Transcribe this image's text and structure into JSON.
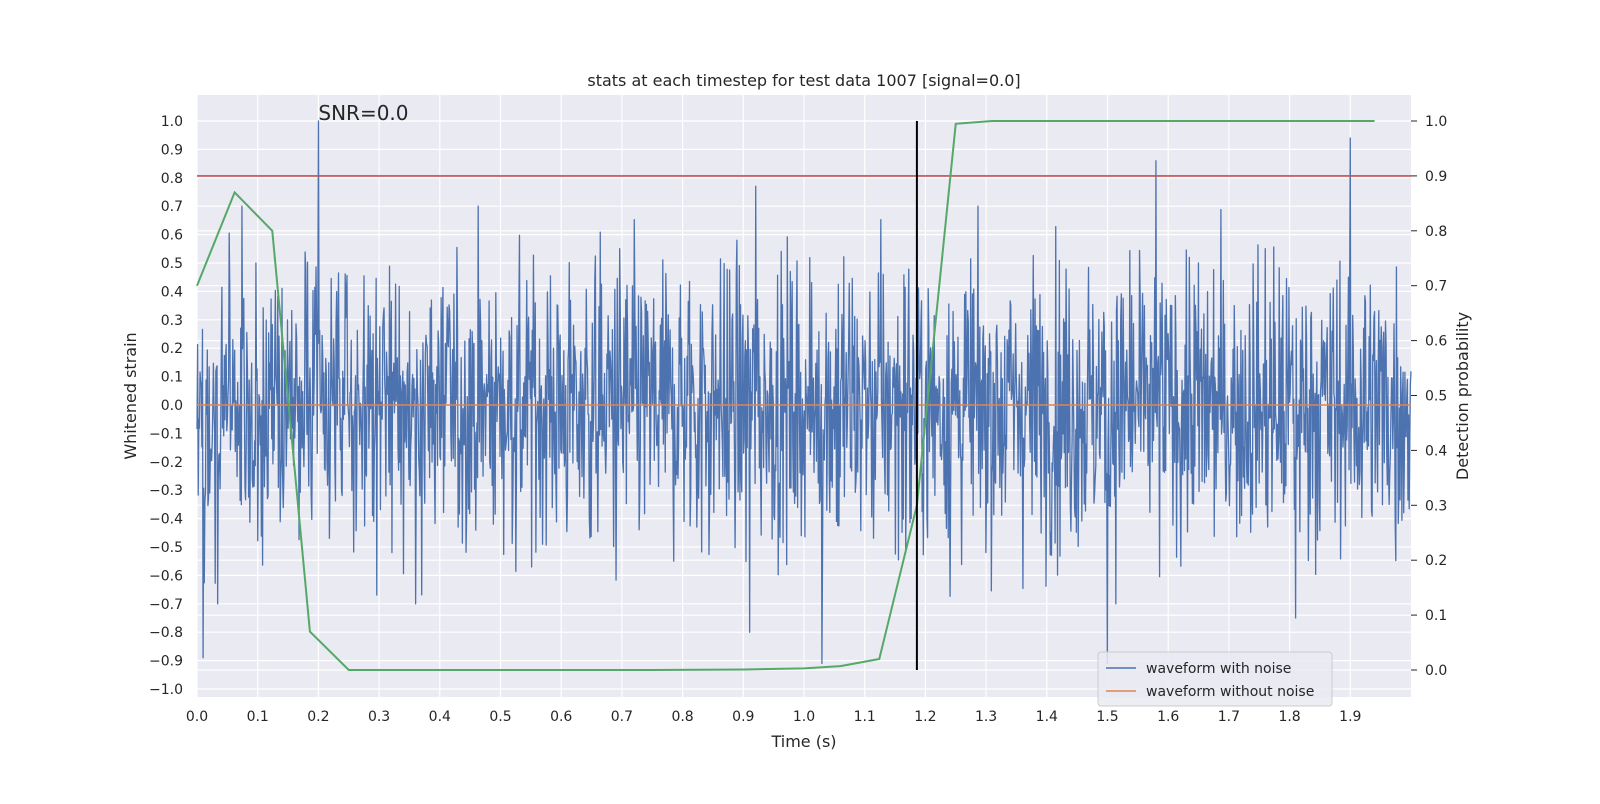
{
  "chart_data": {
    "type": "line",
    "title": "stats at each timestep for test data 1007 [signal=0.0]",
    "annotation": "SNR=0.0",
    "xlabel": "Time (s)",
    "ylabel": "Whitened strain",
    "ylabel_right": "Detection probability",
    "xlim": [
      0.0,
      2.0
    ],
    "ylim": [
      -1.05,
      1.05
    ],
    "ylim_right": [
      -0.05,
      1.05
    ],
    "x_ticks": [
      "0.0",
      "0.1",
      "0.2",
      "0.3",
      "0.4",
      "0.5",
      "0.6",
      "0.7",
      "0.8",
      "0.9",
      "1.0",
      "1.1",
      "1.2",
      "1.3",
      "1.4",
      "1.5",
      "1.6",
      "1.7",
      "1.8",
      "1.9"
    ],
    "y_ticks": [
      "1.0",
      "0.9",
      "0.8",
      "0.7",
      "0.6",
      "0.5",
      "0.4",
      "0.3",
      "0.2",
      "0.1",
      "0.0",
      "−0.1",
      "−0.2",
      "−0.3",
      "−0.4",
      "−0.5",
      "−0.6",
      "−0.7",
      "−0.8",
      "−0.9",
      "−1.0"
    ],
    "y_ticks_right": [
      "1.0",
      "0.9",
      "0.8",
      "0.7",
      "0.6",
      "0.5",
      "0.4",
      "0.3",
      "0.2",
      "0.1",
      "0.0"
    ],
    "grid": true,
    "legend_position": "lower-right",
    "series": [
      {
        "name": "waveform with noise",
        "color": "#4c72b0",
        "axis": "left",
        "noise_amplitude_std": 0.25,
        "spikes": [
          {
            "x": 0.2,
            "y": 1.0
          },
          {
            "x": 0.92,
            "y": 0.77
          },
          {
            "x": 1.58,
            "y": 0.86
          },
          {
            "x": 1.9,
            "y": 0.94
          },
          {
            "x": 1.5,
            "y": -0.91
          },
          {
            "x": 1.03,
            "y": -0.91
          },
          {
            "x": 0.91,
            "y": -0.8
          },
          {
            "x": 0.01,
            "y": -0.89
          },
          {
            "x": 1.81,
            "y": -0.75
          }
        ]
      },
      {
        "name": "waveform without noise",
        "color": "#dd8452",
        "axis": "left",
        "x": [
          0.0,
          2.0
        ],
        "y": [
          0.0,
          0.0
        ]
      },
      {
        "name": "detection probability",
        "color": "#55a868",
        "axis": "right",
        "x": [
          0.0,
          0.062,
          0.124,
          0.186,
          0.25,
          0.5,
          0.75,
          0.9,
          1.0,
          1.06,
          1.124,
          1.186,
          1.25,
          1.31,
          1.5,
          1.75,
          1.94
        ],
        "y": [
          0.7,
          0.87,
          0.8,
          0.07,
          0.0,
          0.0,
          0.0,
          0.001,
          0.003,
          0.007,
          0.02,
          0.3,
          0.995,
          1.0,
          1.0,
          1.0,
          1.0
        ]
      }
    ],
    "threshold_line": {
      "axis": "right",
      "y": 0.9,
      "color": "#c44e52"
    },
    "vertical_marker": {
      "x": 1.186,
      "y_range": [
        0.0,
        1.0
      ],
      "color": "#000000"
    }
  }
}
